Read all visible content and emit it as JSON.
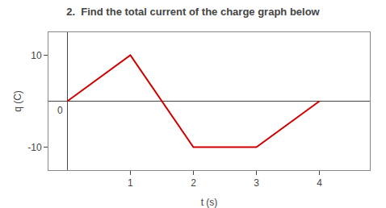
{
  "chart_data": {
    "type": "line",
    "title": "2.  Find the total current of the charge graph below",
    "x_label": "t (s)",
    "y_label": "q (C)",
    "x": [
      0,
      1,
      2,
      3,
      4
    ],
    "values": [
      0,
      10,
      -10,
      -10,
      0
    ],
    "color": "#cc0000",
    "xlim": [
      -0.3,
      4.8
    ],
    "ylim": [
      -15,
      15
    ],
    "xticks": [
      1,
      2,
      3,
      4
    ],
    "yticks": [
      -10,
      10
    ],
    "annotations": [
      {
        "text": "0"
      }
    ],
    "grid": false
  }
}
